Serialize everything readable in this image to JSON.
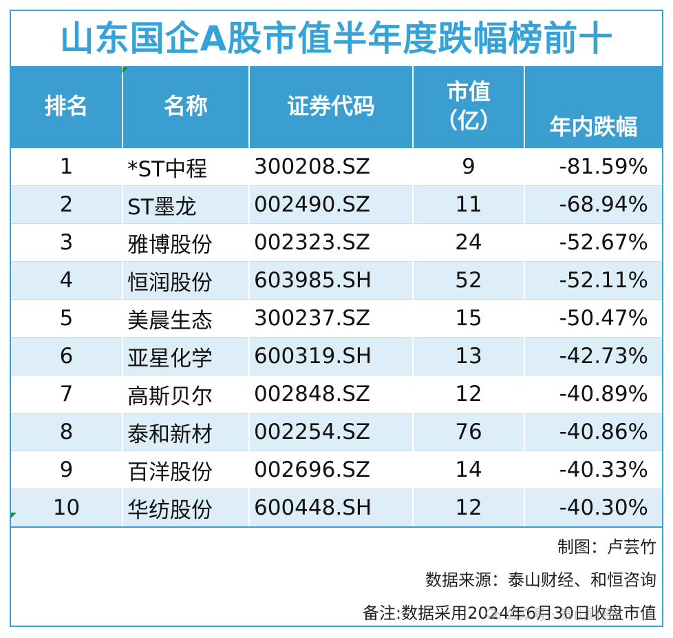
{
  "title": "山东国企A股市值半年度跌幅榜前十",
  "headers": {
    "rank": "排名",
    "name": "名称",
    "code": "证券代码",
    "cap_line1": "市值",
    "cap_line2": "（亿）",
    "change": "年内跌幅"
  },
  "rows": [
    {
      "rank": "1",
      "name": "*ST中程",
      "code": "300208.SZ",
      "cap": "9",
      "change": "-81.59%"
    },
    {
      "rank": "2",
      "name": "ST墨龙",
      "code": "002490.SZ",
      "cap": "11",
      "change": "-68.94%"
    },
    {
      "rank": "3",
      "name": "雅博股份",
      "code": "002323.SZ",
      "cap": "24",
      "change": "-52.67%"
    },
    {
      "rank": "4",
      "name": "恒润股份",
      "code": "603985.SH",
      "cap": "52",
      "change": "-52.11%"
    },
    {
      "rank": "5",
      "name": "美晨生态",
      "code": "300237.SZ",
      "cap": "15",
      "change": "-50.47%"
    },
    {
      "rank": "6",
      "name": "亚星化学",
      "code": "600319.SH",
      "cap": "13",
      "change": "-42.73%"
    },
    {
      "rank": "7",
      "name": "高斯贝尔",
      "code": "002848.SZ",
      "cap": "12",
      "change": "-40.89%"
    },
    {
      "rank": "8",
      "name": "泰和新材",
      "code": "002254.SZ",
      "cap": "76",
      "change": "-40.86%"
    },
    {
      "rank": "9",
      "name": "百洋股份",
      "code": "002696.SZ",
      "cap": "14",
      "change": "-40.33%"
    },
    {
      "rank": "10",
      "name": "华纺股份",
      "code": "600448.SH",
      "cap": "12",
      "change": "-40.30%"
    }
  ],
  "notes": {
    "maker": "制图：卢芸竹",
    "source": "数据来源：泰山财经、和恒咨询",
    "remark": "备注:数据采用2024年6月30日收盘市值"
  },
  "watermark": "公众号 · 泰山财经",
  "colors": {
    "header_bg": "#3a9fd0",
    "title": "#35a3d8",
    "alt_row": "#ddeef8"
  }
}
